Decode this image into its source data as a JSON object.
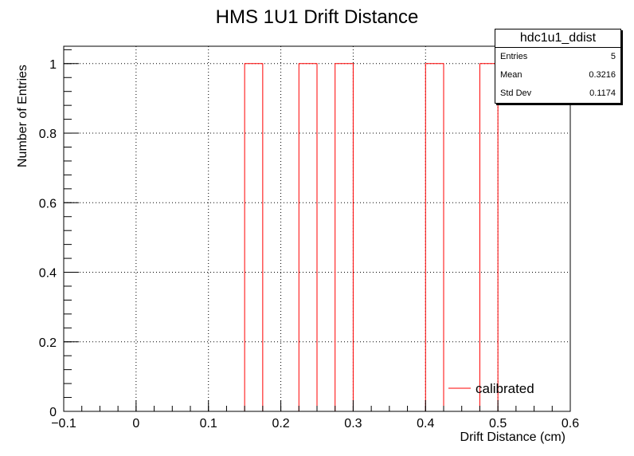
{
  "chart_data": {
    "type": "histogram",
    "title": "HMS 1U1 Drift Distance",
    "xlabel": "Drift Distance (cm)",
    "ylabel": "Number of Entries",
    "xlim": [
      -0.1,
      0.6
    ],
    "ylim": [
      0,
      1.05
    ],
    "x_ticks": [
      "−0.1",
      "0",
      "0.1",
      "0.2",
      "0.3",
      "0.4",
      "0.5",
      "0.6"
    ],
    "y_ticks": [
      "0",
      "0.2",
      "0.4",
      "0.6",
      "0.8",
      "1"
    ],
    "grid": true,
    "bin_width": 0.025,
    "bins": [
      {
        "x_low": 0.15,
        "x_high": 0.175,
        "value": 1
      },
      {
        "x_low": 0.225,
        "x_high": 0.25,
        "value": 1
      },
      {
        "x_low": 0.275,
        "x_high": 0.3,
        "value": 1
      },
      {
        "x_low": 0.4,
        "x_high": 0.425,
        "value": 1
      },
      {
        "x_low": 0.475,
        "x_high": 0.5,
        "value": 1
      }
    ],
    "series": [
      {
        "name": "calibrated",
        "color": "#ff0000"
      }
    ],
    "legend": {
      "label": "calibrated",
      "placement": "bottom-right"
    },
    "stats_box": {
      "name": "hdc1u1_ddist",
      "rows": [
        {
          "label": "Entries",
          "value": "5"
        },
        {
          "label": "Mean",
          "value": "0.3216"
        },
        {
          "label": "Std Dev",
          "value": "0.1174"
        }
      ]
    }
  }
}
